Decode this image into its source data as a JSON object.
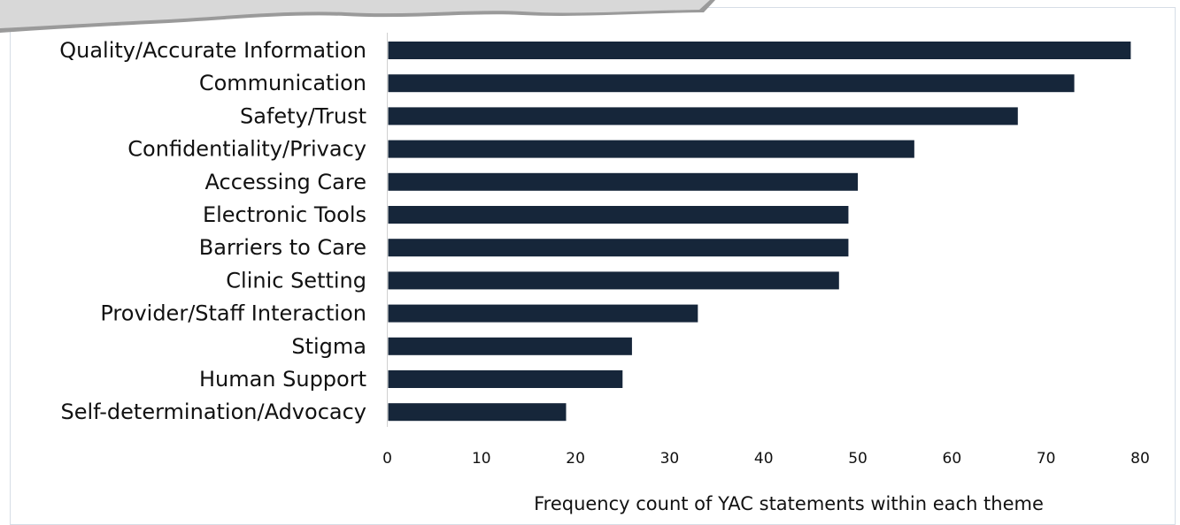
{
  "chart_data": {
    "type": "bar",
    "orientation": "horizontal",
    "categories": [
      "Quality/Accurate Information",
      "Communication",
      "Safety/Trust",
      "Confidentiality/Privacy",
      "Accessing Care",
      "Electronic Tools",
      "Barriers to Care",
      "Clinic Setting",
      "Provider/Staff Interaction",
      "Stigma",
      "Human Support",
      "Self-determination/Advocacy"
    ],
    "values": [
      79,
      73,
      67,
      56,
      50,
      49,
      49,
      48,
      33,
      26,
      25,
      19
    ],
    "x_ticks": [
      "0",
      "10",
      "20",
      "30",
      "40",
      "50",
      "60",
      "70",
      "80"
    ],
    "xlim": [
      0,
      80
    ],
    "xlabel": "Frequency count of YAC statements within each theme",
    "title": "",
    "grid": false,
    "legend": "none",
    "colors": {
      "bar": "#16263a",
      "axis": "#d0d0d0",
      "frame": "#d6dde6",
      "text": "#111111"
    }
  }
}
